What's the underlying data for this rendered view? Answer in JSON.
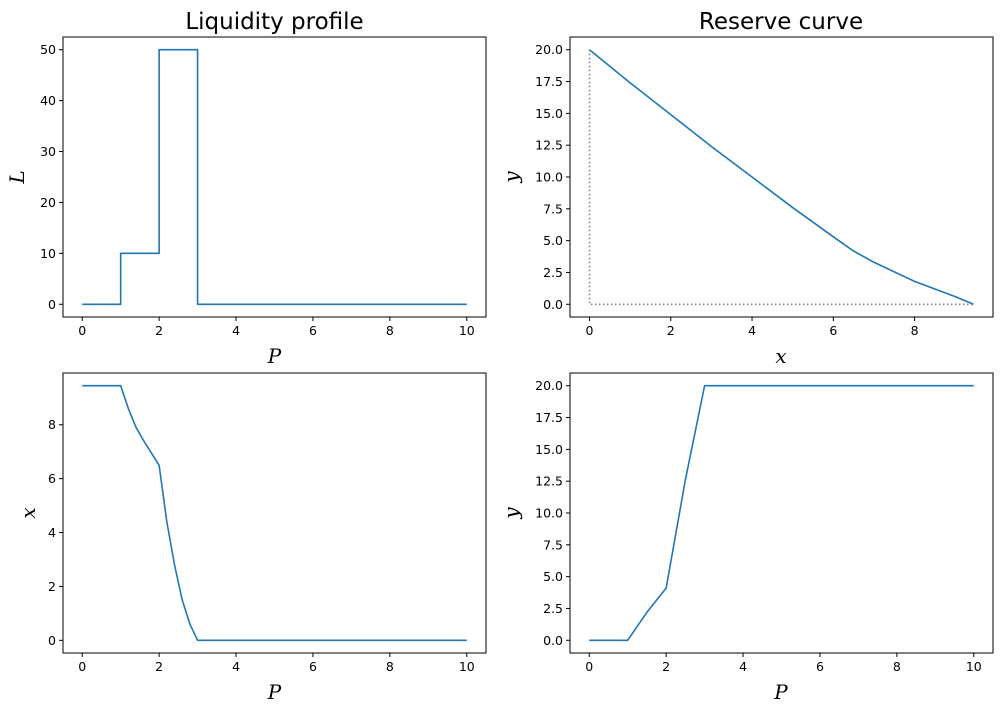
{
  "colors": {
    "series": "#1f77b4",
    "guide": "#808080"
  },
  "chart_data": [
    {
      "type": "line",
      "title": "Liquidity profile",
      "xlabel": "P",
      "ylabel": "L",
      "xlim": [
        -0.5,
        10.5
      ],
      "ylim": [
        -2.5,
        52.5
      ],
      "xticks": [
        0,
        2,
        4,
        6,
        8,
        10
      ],
      "yticks": [
        0,
        10,
        20,
        30,
        40,
        50
      ],
      "tick_format": "int",
      "grid": false,
      "series": [
        {
          "x": [
            0,
            1,
            1,
            2,
            2,
            3,
            3,
            10
          ],
          "y": [
            0,
            0,
            10,
            10,
            50,
            50,
            0,
            0
          ]
        }
      ]
    },
    {
      "type": "line",
      "title": "Reserve curve",
      "xlabel": "x",
      "ylabel": "y",
      "xlim": [
        -0.48,
        9.93
      ],
      "ylim": [
        -1.0,
        21.0
      ],
      "xticks": [
        0,
        2,
        4,
        6,
        8
      ],
      "yticks": [
        0,
        2.5,
        5,
        7.5,
        10,
        12.5,
        15,
        17.5,
        20
      ],
      "tick_format": "1dp",
      "grid": false,
      "series": [
        {
          "x": [
            0,
            1.0,
            2.0,
            3.0,
            4.0,
            5.0,
            6.0,
            6.49,
            7.0,
            8.0,
            9.0,
            9.45
          ],
          "y": [
            20,
            17.4,
            14.9,
            12.4,
            10.0,
            7.6,
            5.3,
            4.2,
            3.3,
            1.8,
            0.6,
            0
          ]
        },
        {
          "style": "dotted",
          "x": [
            0,
            0,
            9.45
          ],
          "y": [
            20,
            0,
            0
          ]
        }
      ]
    },
    {
      "type": "line",
      "title": "",
      "xlabel": "P",
      "ylabel": "x",
      "xlim": [
        -0.5,
        10.5
      ],
      "ylim": [
        -0.47,
        9.92
      ],
      "xticks": [
        0,
        2,
        4,
        6,
        8,
        10
      ],
      "yticks": [
        0,
        2,
        4,
        6,
        8
      ],
      "tick_format": "int",
      "grid": false,
      "series": [
        {
          "x": [
            0,
            1.0,
            1.2,
            1.4,
            1.6,
            1.8,
            2.0,
            2.2,
            2.4,
            2.6,
            2.8,
            3.0,
            10
          ],
          "y": [
            9.45,
            9.45,
            8.6,
            7.9,
            7.4,
            6.95,
            6.49,
            4.4,
            2.8,
            1.5,
            0.6,
            0,
            0
          ]
        }
      ]
    },
    {
      "type": "line",
      "title": "",
      "xlabel": "P",
      "ylabel": "y",
      "xlim": [
        -0.5,
        10.5
      ],
      "ylim": [
        -1.0,
        21.0
      ],
      "xticks": [
        0,
        2,
        4,
        6,
        8,
        10
      ],
      "yticks": [
        0,
        2.5,
        5,
        7.5,
        10,
        12.5,
        15,
        17.5,
        20
      ],
      "tick_format": "1dp",
      "grid": false,
      "series": [
        {
          "x": [
            0,
            1.0,
            1.5,
            2.0,
            2.5,
            3.0,
            10
          ],
          "y": [
            0,
            0,
            2.2,
            4.1,
            12.6,
            20,
            20
          ]
        }
      ]
    }
  ]
}
